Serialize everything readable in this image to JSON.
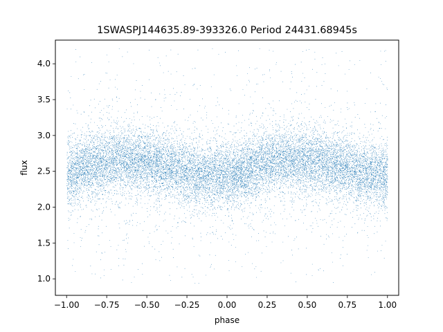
{
  "chart_data": {
    "type": "scatter",
    "title": "1SWASPJ144635.89-393326.0 Period 24431.68945s",
    "xlabel": "phase",
    "ylabel": "flux",
    "xlim": [
      -1.07,
      1.07
    ],
    "ylim": [
      0.77,
      4.33
    ],
    "xticks": [
      -1.0,
      -0.75,
      -0.5,
      -0.25,
      0.0,
      0.25,
      0.5,
      0.75,
      1.0
    ],
    "xtick_labels": [
      "−1.00",
      "−0.75",
      "−0.50",
      "−0.25",
      "0.00",
      "0.25",
      "0.50",
      "0.75",
      "1.00"
    ],
    "yticks": [
      1.0,
      1.5,
      2.0,
      2.5,
      3.0,
      3.5,
      4.0
    ],
    "ytick_labels": [
      "1.0",
      "1.5",
      "2.0",
      "2.5",
      "3.0",
      "3.5",
      "4.0"
    ],
    "grid": false,
    "legend": "none",
    "marker_color": "#1f77b4",
    "marker": "point",
    "x_range": [
      -1.0,
      1.0
    ],
    "y_range": [
      0.93,
      4.22
    ],
    "approx_point_count": 30000,
    "trend": {
      "phase": [
        -1.0,
        -0.9,
        -0.8,
        -0.7,
        -0.6,
        -0.5,
        -0.4,
        -0.3,
        -0.2,
        -0.1,
        0.0,
        0.1,
        0.2,
        0.3,
        0.4,
        0.5,
        0.6,
        0.7,
        0.8,
        0.9,
        1.0
      ],
      "median_flux": [
        2.45,
        2.55,
        2.62,
        2.66,
        2.65,
        2.62,
        2.56,
        2.52,
        2.46,
        2.45,
        2.45,
        2.5,
        2.58,
        2.65,
        2.66,
        2.65,
        2.62,
        2.58,
        2.52,
        2.47,
        2.45
      ]
    },
    "scatter_sigma": 0.22
  }
}
